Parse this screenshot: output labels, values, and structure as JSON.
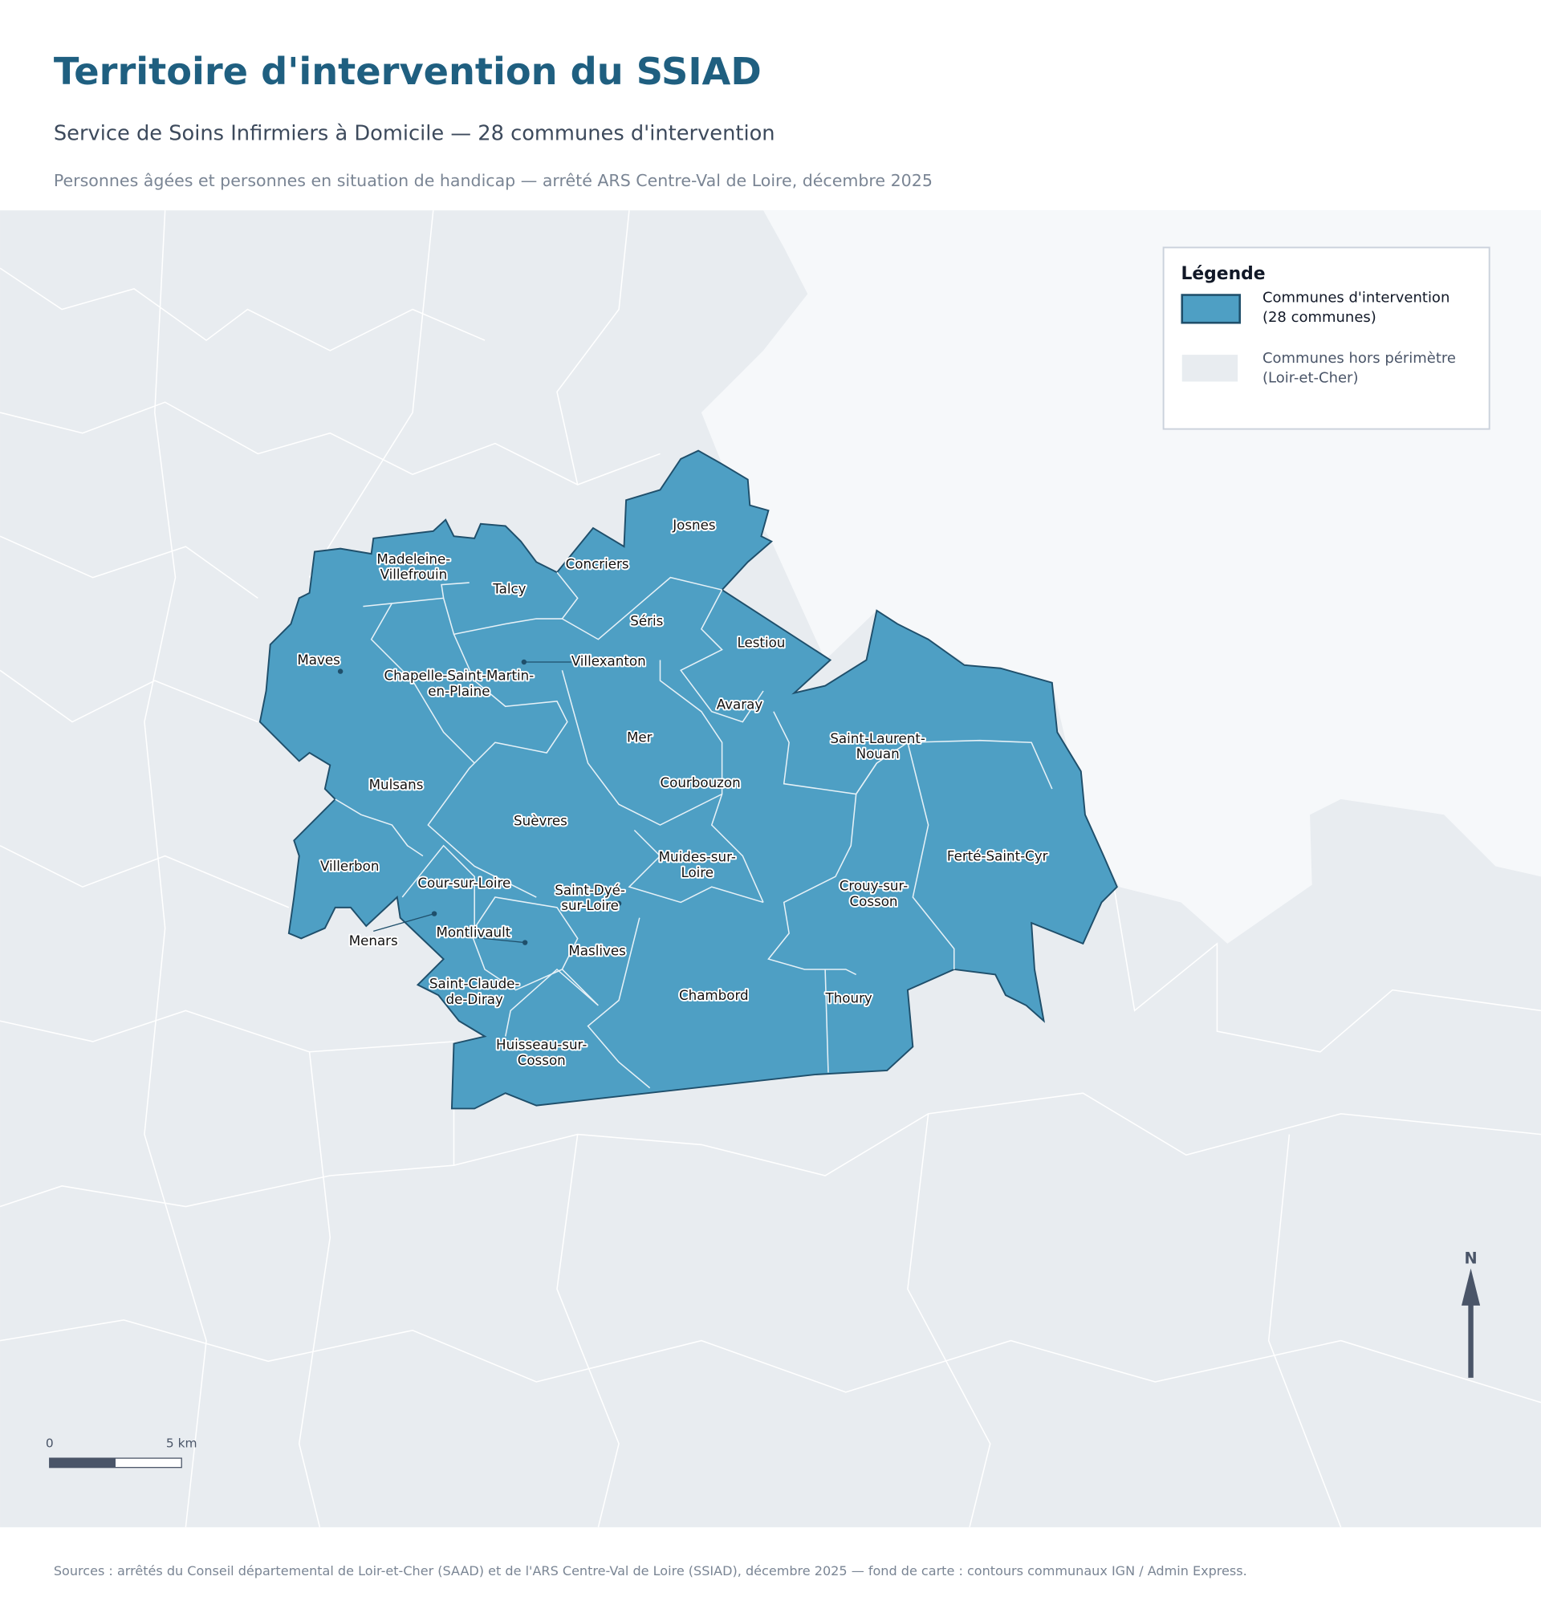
{
  "header": {
    "title": "Territoire d'intervention du SSIAD",
    "subtitle": "Service de Soins Infirmiers à Domicile — 28 communes d'intervention",
    "note": "Personnes âgées et personnes en situation de handicap — arrêté ARS Centre-Val de Loire, décembre 2025"
  },
  "legend": {
    "title": "Légende",
    "items": [
      [
        "Communes d'intervention",
        "(28 communes)"
      ],
      [
        "Communes hors périmètre",
        "(Loir-et-Cher)"
      ]
    ]
  },
  "map": {
    "communes": [
      [
        "Josnes"
      ],
      [
        "Concriers"
      ],
      [
        "Madeleine-",
        "Villefrouin"
      ],
      [
        "Talcy"
      ],
      [
        "Séris"
      ],
      [
        "Lestiou"
      ],
      [
        "Maves"
      ],
      [
        "Villexanton"
      ],
      [
        "Chapelle-Saint-Martin-",
        "en-Plaine"
      ],
      [
        "Avaray"
      ],
      [
        "Saint-Laurent-",
        "Nouan"
      ],
      [
        "Mer"
      ],
      [
        "Mulsans"
      ],
      [
        "Courbouzon"
      ],
      [
        "Suèvres"
      ],
      [
        "Villerbon"
      ],
      [
        "Muides-sur-",
        "Loire"
      ],
      [
        "Ferté-Saint-Cyr"
      ],
      [
        "Cour-sur-Loire"
      ],
      [
        "Saint-Dyé-",
        "sur-Loire"
      ],
      [
        "Crouy-sur-",
        "Cosson"
      ],
      [
        "Menars"
      ],
      [
        "Montlivault"
      ],
      [
        "Maslives"
      ],
      [
        "Saint-Claude-",
        "de-Diray"
      ],
      [
        "Chambord"
      ],
      [
        "Thoury"
      ],
      [
        "Huisseau-sur-",
        "Cosson"
      ]
    ]
  },
  "scale_bar": {
    "start": "0",
    "end": "5 km"
  },
  "north": "N",
  "footer": {
    "source": "Sources : arrêtés du Conseil départemental de Loir-et-Cher (SAAD) et de l'ARS Centre-Val de Loire (SSIAD), décembre 2025 — fond de carte : contours communaux IGN / Admin Express."
  }
}
